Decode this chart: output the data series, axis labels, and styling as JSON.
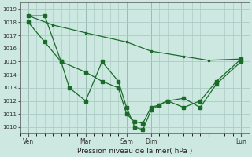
{
  "xlabel": "Pression niveau de la mer( hPa )",
  "background_color": "#cce8e0",
  "grid_color": "#aaccc4",
  "line_color": "#1a6b2a",
  "ylim": [
    1009.5,
    1019.5
  ],
  "yticks": [
    1010,
    1011,
    1012,
    1013,
    1014,
    1015,
    1016,
    1017,
    1018,
    1019
  ],
  "xlim": [
    0,
    28
  ],
  "xtick_positions": [
    1,
    8,
    13,
    16,
    23,
    27
  ],
  "xtick_labels": [
    "Ven",
    "Mar",
    "Sam",
    "Dim",
    "",
    "Lun"
  ],
  "vline_positions": [
    1,
    8,
    13,
    16,
    23,
    27
  ],
  "series_straight": {
    "x": [
      1,
      4,
      8,
      13,
      16,
      20,
      23,
      27
    ],
    "y": [
      1018.5,
      1017.8,
      1017.2,
      1016.5,
      1015.8,
      1015.4,
      1015.1,
      1015.2
    ]
  },
  "series_mid": {
    "x": [
      1,
      3,
      5,
      8,
      10,
      12,
      13,
      14,
      15,
      16,
      17,
      18,
      20,
      22,
      24,
      27
    ],
    "y": [
      1018.0,
      1016.5,
      1015.0,
      1014.2,
      1013.5,
      1013.0,
      1011.0,
      1010.4,
      1010.3,
      1011.5,
      1011.7,
      1012.0,
      1012.2,
      1011.5,
      1013.3,
      1015.0
    ]
  },
  "series_jagged": {
    "x": [
      1,
      3,
      5,
      6,
      8,
      10,
      12,
      13,
      14,
      15,
      16,
      17,
      18,
      20,
      22,
      24,
      27
    ],
    "y": [
      1018.5,
      1018.5,
      1015.0,
      1013.0,
      1012.0,
      1015.0,
      1013.5,
      1011.5,
      1010.0,
      1009.8,
      1011.3,
      1011.7,
      1012.0,
      1011.5,
      1012.0,
      1013.5,
      1015.2
    ]
  },
  "marker_size": 2.5,
  "linewidth": 0.9,
  "xlabel_fontsize": 6.5,
  "ytick_fontsize": 5.0,
  "xtick_fontsize": 5.5
}
